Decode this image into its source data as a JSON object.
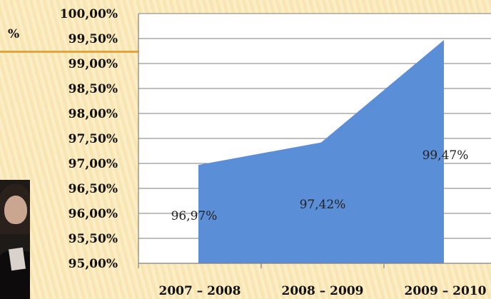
{
  "slide": {
    "percent_header": "%"
  },
  "chart_data": {
    "type": "area",
    "categories": [
      "2007 – 2008",
      "2008 – 2009",
      "2009 – 2010"
    ],
    "series": [
      {
        "values": [
          96.97,
          97.42,
          99.47
        ]
      }
    ],
    "data_labels": [
      "96,97%",
      "97,42%",
      "99,47%"
    ],
    "y_tick_labels": [
      "95,00%",
      "95,50%",
      "96,00%",
      "96,50%",
      "97,00%",
      "97,50%",
      "98,00%",
      "98,50%",
      "99,00%",
      "99,50%",
      "100,00%"
    ],
    "ylim": [
      95,
      100
    ],
    "y_step": 0.5,
    "grid": true,
    "legend": "none",
    "colors": {
      "area": "#5a8ed6"
    }
  }
}
